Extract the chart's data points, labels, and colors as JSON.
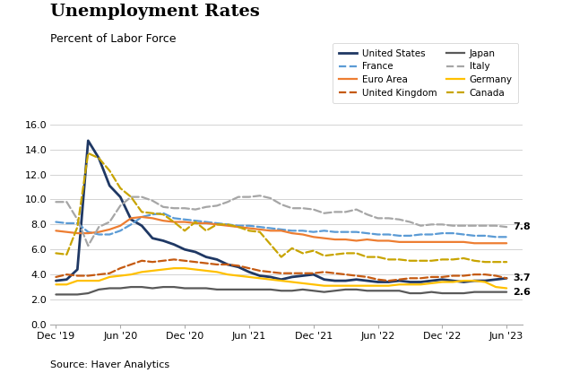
{
  "title": "Unemployment Rates",
  "subtitle": "Percent of Labor Force",
  "source": "Source: Haver Analytics",
  "ylim": [
    0.0,
    17.0
  ],
  "yticks": [
    0.0,
    2.0,
    4.0,
    6.0,
    8.0,
    10.0,
    12.0,
    14.0,
    16.0
  ],
  "xtick_labels": [
    "Dec '19",
    "Jun '20",
    "Dec '20",
    "Jun '21",
    "Dec '21",
    "Jun '22",
    "Dec '22",
    "Jun '23"
  ],
  "xtick_positions": [
    0,
    6,
    12,
    18,
    24,
    30,
    36,
    42
  ],
  "series": {
    "United States": {
      "color": "#1f3864",
      "linestyle": "solid",
      "linewidth": 2.0,
      "values": [
        3.5,
        3.6,
        4.4,
        14.7,
        13.3,
        11.1,
        10.2,
        8.4,
        7.9,
        6.9,
        6.7,
        6.4,
        6.0,
        5.8,
        5.4,
        5.2,
        4.8,
        4.6,
        4.2,
        3.9,
        3.8,
        3.6,
        3.8,
        3.9,
        4.0,
        3.6,
        3.5,
        3.5,
        3.6,
        3.5,
        3.4,
        3.4,
        3.5,
        3.4,
        3.4,
        3.5,
        3.6,
        3.5,
        3.4,
        3.5,
        3.5,
        3.6,
        3.7
      ]
    },
    "France": {
      "color": "#5b9bd5",
      "linestyle": "dashed",
      "linewidth": 1.6,
      "values": [
        8.2,
        8.1,
        8.1,
        7.4,
        7.2,
        7.2,
        7.5,
        8.0,
        8.6,
        8.8,
        8.9,
        8.5,
        8.4,
        8.3,
        8.2,
        8.1,
        8.0,
        7.9,
        7.9,
        7.8,
        7.7,
        7.6,
        7.5,
        7.5,
        7.4,
        7.5,
        7.4,
        7.4,
        7.4,
        7.3,
        7.2,
        7.2,
        7.1,
        7.1,
        7.2,
        7.2,
        7.3,
        7.3,
        7.2,
        7.1,
        7.1,
        7.0,
        7.0
      ]
    },
    "Euro Area": {
      "color": "#ed7d31",
      "linestyle": "solid",
      "linewidth": 1.6,
      "values": [
        7.5,
        7.4,
        7.3,
        7.3,
        7.4,
        7.6,
        7.9,
        8.5,
        8.6,
        8.5,
        8.3,
        8.2,
        8.2,
        8.1,
        8.1,
        8.0,
        7.9,
        7.8,
        7.7,
        7.6,
        7.5,
        7.5,
        7.3,
        7.2,
        7.0,
        6.9,
        6.8,
        6.8,
        6.7,
        6.8,
        6.7,
        6.7,
        6.6,
        6.6,
        6.6,
        6.6,
        6.6,
        6.6,
        6.6,
        6.5,
        6.5,
        6.5,
        6.5
      ]
    },
    "United Kingdom": {
      "color": "#c55a11",
      "linestyle": "dashed",
      "linewidth": 1.6,
      "values": [
        3.8,
        4.0,
        3.9,
        3.9,
        4.0,
        4.1,
        4.5,
        4.8,
        5.1,
        5.0,
        5.1,
        5.2,
        5.1,
        5.0,
        4.9,
        4.8,
        4.8,
        4.7,
        4.5,
        4.3,
        4.2,
        4.1,
        4.1,
        4.1,
        4.1,
        4.2,
        4.1,
        4.0,
        3.9,
        3.8,
        3.6,
        3.5,
        3.6,
        3.7,
        3.7,
        3.8,
        3.8,
        3.9,
        3.9,
        4.0,
        4.0,
        3.9,
        3.7
      ]
    },
    "Japan": {
      "color": "#595959",
      "linestyle": "solid",
      "linewidth": 1.6,
      "values": [
        2.4,
        2.4,
        2.4,
        2.5,
        2.8,
        2.9,
        2.9,
        3.0,
        3.0,
        2.9,
        3.0,
        3.0,
        2.9,
        2.9,
        2.9,
        2.8,
        2.8,
        2.8,
        2.8,
        2.8,
        2.8,
        2.7,
        2.7,
        2.8,
        2.7,
        2.6,
        2.7,
        2.8,
        2.8,
        2.7,
        2.7,
        2.7,
        2.7,
        2.5,
        2.5,
        2.6,
        2.5,
        2.5,
        2.5,
        2.6,
        2.6,
        2.6,
        2.6
      ]
    },
    "Italy": {
      "color": "#a6a6a6",
      "linestyle": "dashed",
      "linewidth": 1.6,
      "values": [
        9.8,
        9.8,
        8.4,
        6.3,
        7.8,
        8.2,
        9.5,
        10.2,
        10.2,
        9.9,
        9.4,
        9.3,
        9.3,
        9.2,
        9.4,
        9.5,
        9.8,
        10.2,
        10.2,
        10.3,
        10.1,
        9.6,
        9.3,
        9.3,
        9.2,
        8.9,
        9.0,
        9.0,
        9.2,
        8.8,
        8.5,
        8.5,
        8.4,
        8.2,
        7.9,
        8.0,
        8.0,
        7.9,
        7.9,
        7.9,
        7.9,
        7.9,
        7.8
      ]
    },
    "Germany": {
      "color": "#ffc000",
      "linestyle": "solid",
      "linewidth": 1.6,
      "values": [
        3.2,
        3.2,
        3.5,
        3.5,
        3.5,
        3.8,
        3.9,
        4.0,
        4.2,
        4.3,
        4.4,
        4.5,
        4.5,
        4.4,
        4.3,
        4.2,
        4.0,
        3.9,
        3.8,
        3.7,
        3.6,
        3.5,
        3.4,
        3.3,
        3.2,
        3.1,
        3.1,
        3.1,
        3.1,
        3.1,
        3.1,
        3.1,
        3.2,
        3.2,
        3.2,
        3.3,
        3.4,
        3.4,
        3.5,
        3.5,
        3.4,
        3.0,
        2.9
      ]
    },
    "Canada": {
      "color": "#c8a400",
      "linestyle": "dashed",
      "linewidth": 1.6,
      "values": [
        5.7,
        5.6,
        7.8,
        13.7,
        13.3,
        12.3,
        10.9,
        10.2,
        9.0,
        8.9,
        8.8,
        8.2,
        7.5,
        8.2,
        7.5,
        8.0,
        8.0,
        7.8,
        7.5,
        7.4,
        6.4,
        5.4,
        6.1,
        5.7,
        5.9,
        5.5,
        5.6,
        5.7,
        5.7,
        5.4,
        5.4,
        5.2,
        5.2,
        5.1,
        5.1,
        5.1,
        5.2,
        5.2,
        5.3,
        5.1,
        5.0,
        5.0,
        5.0
      ]
    }
  },
  "end_labels": [
    {
      "name": "Italy",
      "label": "7.8"
    },
    {
      "name": "United States",
      "label": "3.7"
    },
    {
      "name": "Japan",
      "label": "2.6"
    }
  ],
  "legend_left": [
    "United States",
    "Euro Area",
    "Japan",
    "Germany"
  ],
  "legend_right": [
    "France",
    "United Kingdom",
    "Italy",
    "Canada"
  ]
}
